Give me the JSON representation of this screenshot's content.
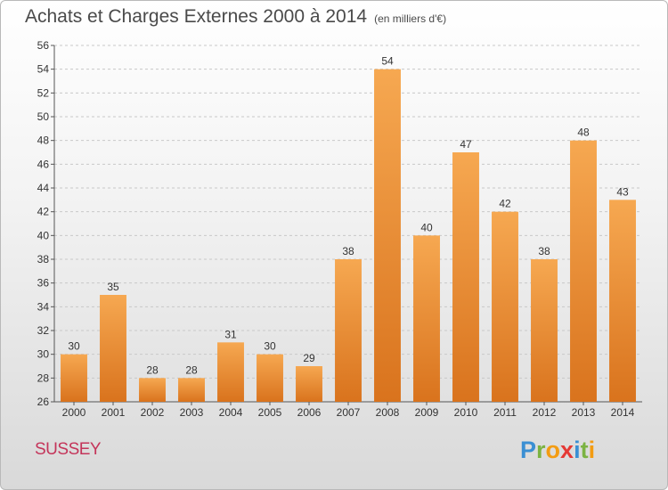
{
  "header": {
    "title": "Achats et Charges Externes 2000 à 2014",
    "subtitle": "(en milliers d'€)"
  },
  "footer": {
    "city": "SUSSEY",
    "logo": "Proxiti"
  },
  "colors": {
    "bar_top": "#f6a851",
    "bar_bottom": "#d9731d",
    "city": "#c4355a"
  },
  "chart_data": {
    "type": "bar",
    "title": "Achats et Charges Externes 2000 à 2014",
    "subtitle": "(en milliers d'€)",
    "xlabel": "",
    "ylabel": "",
    "categories": [
      "2000",
      "2001",
      "2002",
      "2003",
      "2004",
      "2005",
      "2006",
      "2007",
      "2008",
      "2009",
      "2010",
      "2011",
      "2012",
      "2013",
      "2014"
    ],
    "values": [
      30,
      35,
      28,
      28,
      31,
      30,
      29,
      38,
      54,
      40,
      47,
      42,
      38,
      48,
      43
    ],
    "ylim": [
      26,
      56
    ],
    "yticks": [
      26,
      28,
      30,
      32,
      34,
      36,
      38,
      40,
      42,
      44,
      46,
      48,
      50,
      52,
      54,
      56
    ],
    "grid": "horizontal-dashed"
  }
}
